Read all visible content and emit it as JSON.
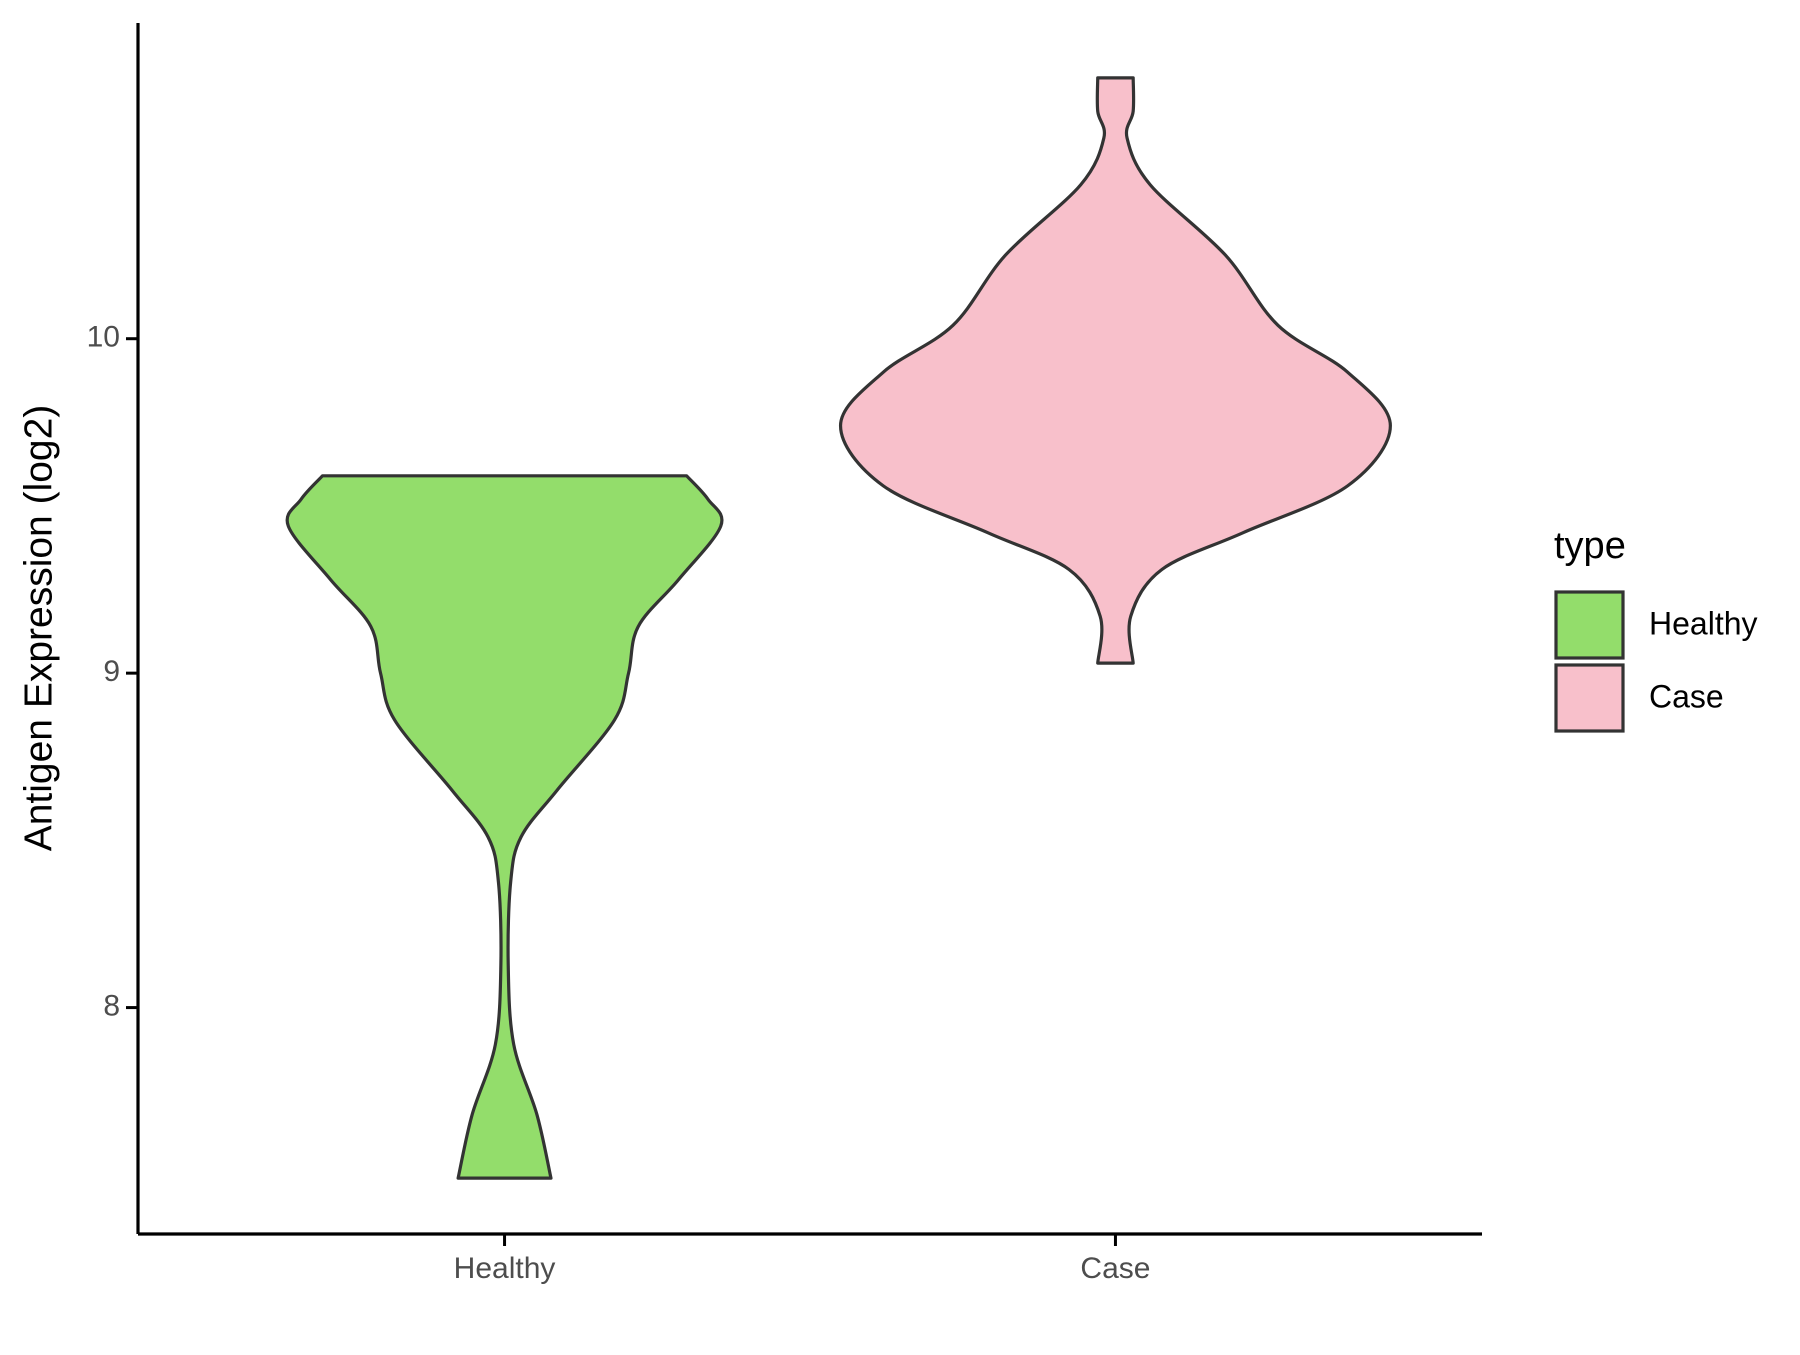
{
  "chart_data": {
    "type": "violin",
    "y_label": "Antigen Expression (log2)",
    "categories": [
      "Healthy",
      "Case"
    ],
    "series": [
      {
        "name": "Healthy",
        "color": "#93dd6b",
        "y": [
          7.49,
          7.68,
          7.89,
          8.13,
          8.375,
          8.51,
          8.65,
          8.86,
          9.0,
          9.14,
          9.28,
          9.44,
          9.52,
          9.59
        ],
        "half_width": [
          0.076,
          0.053,
          0.015,
          0.006,
          0.01,
          0.027,
          0.086,
          0.18,
          0.203,
          0.219,
          0.285,
          0.354,
          0.333,
          0.298
        ]
      },
      {
        "name": "Case",
        "color": "#f8c0cb",
        "y": [
          9.03,
          9.17,
          9.31,
          9.42,
          9.56,
          9.74,
          9.9,
          10.04,
          10.25,
          10.46,
          10.6,
          10.68,
          10.78
        ],
        "half_width": [
          0.029,
          0.025,
          0.076,
          0.209,
          0.38,
          0.45,
          0.38,
          0.266,
          0.18,
          0.057,
          0.019,
          0.029,
          0.029
        ]
      }
    ],
    "xlim": [
      0.4,
      2.6
    ],
    "ylim": [
      7.323,
      10.944
    ],
    "yticks": [
      8,
      9,
      10
    ],
    "legend_title": "type",
    "legend_position": "right"
  }
}
